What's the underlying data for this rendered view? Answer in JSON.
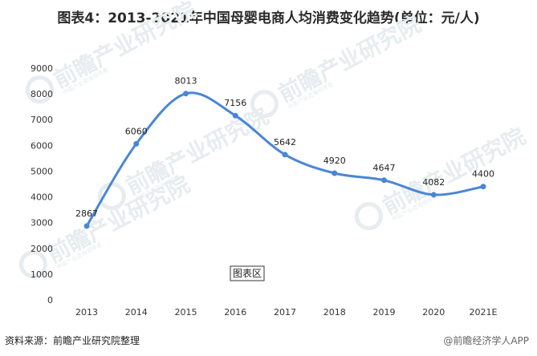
{
  "title": "图表4：2013-2021年中国母婴电商人均消费变化趋势(单位：元/人)",
  "chart_data": {
    "type": "line",
    "title": "图表4：2013-2021年中国母婴电商人均消费变化趋势(单位：元/人)",
    "xlabel": "",
    "ylabel": "",
    "categories": [
      "2013",
      "2014",
      "2015",
      "2016",
      "2017",
      "2018",
      "2019",
      "2020",
      "2021E"
    ],
    "series": [
      {
        "values": [
          2867,
          6060,
          8013,
          7156,
          5642,
          4920,
          4647,
          4082,
          4400
        ]
      }
    ],
    "ylim": [
      0,
      9000
    ],
    "yticks": [
      0,
      1000,
      2000,
      3000,
      4000,
      5000,
      6000,
      7000,
      8000,
      9000
    ],
    "grid": false,
    "legend": "none",
    "line_color": "#4a86d6"
  },
  "plot_area_label": "图表区",
  "watermark": {
    "brand": "前瞻产业研究院",
    "sub": "中国产业咨询领导者"
  },
  "source_text": "资料来源：前瞻产业研究院整理",
  "credit_text": "@前瞻经济学人APP"
}
